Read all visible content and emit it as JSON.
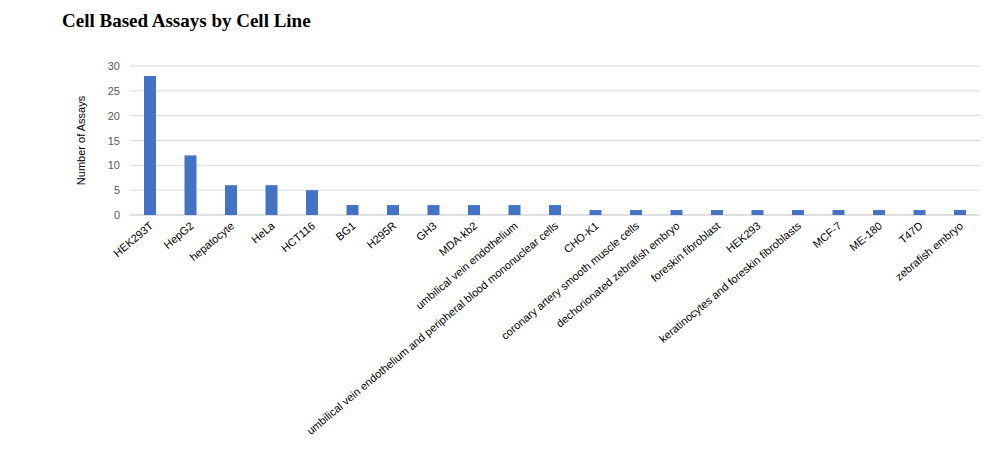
{
  "chart_data": {
    "type": "bar",
    "title": "Cell Based Assays by Cell Line",
    "y_label": "Number of Assays",
    "categories": [
      "HEK293T",
      "HepG2",
      "hepatocyte",
      "HeLa",
      "HCT116",
      "BG1",
      "H295R",
      "GH3",
      "MDA-kb2",
      "umbilical vein endothelium",
      "umbilical vein endothelium and peripheral blood mononuclear cells",
      "CHO-K1",
      "coronary artery smooth muscle cells",
      "dechorionated zebrafish embryo",
      "foreskin fibroblast",
      "HEK293",
      "keratinocytes and foreskin fibroblasts",
      "MCF-7",
      "ME-180",
      "T47D",
      "zebrafish embryo"
    ],
    "values": [
      28,
      12,
      6,
      6,
      5,
      2,
      2,
      2,
      2,
      2,
      2,
      1,
      1,
      1,
      1,
      1,
      1,
      1,
      1,
      1,
      1
    ],
    "color": "#4472c4",
    "ylim": [
      0,
      30
    ],
    "yticks": [
      0,
      5,
      10,
      15,
      20,
      25,
      30
    ],
    "grid": true
  }
}
